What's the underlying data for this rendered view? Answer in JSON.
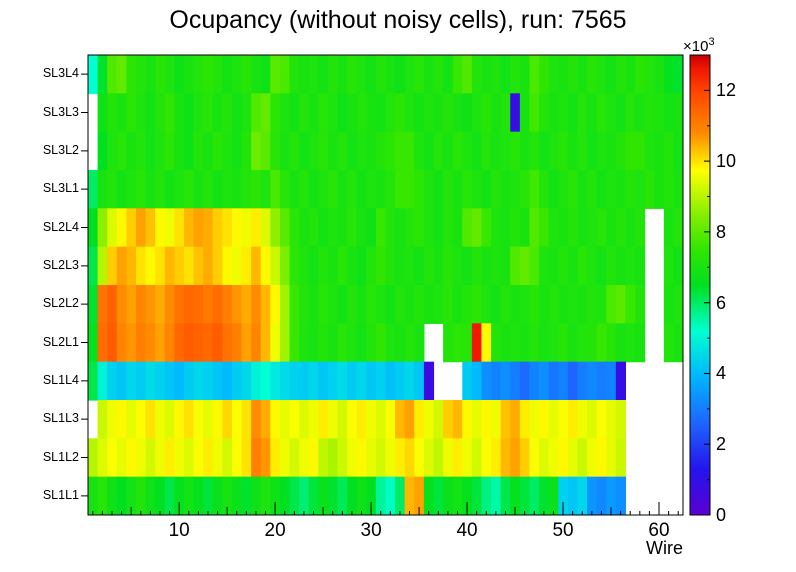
{
  "chart_data": {
    "type": "heatmap",
    "title": "Ocupancy (without noisy cells), run: 7565",
    "xlabel": "Wire",
    "x_ticks": [
      10,
      20,
      30,
      40,
      50,
      60
    ],
    "x_range": [
      0.5,
      62.5
    ],
    "n_wires": 62,
    "zmin": 0,
    "zmax": 13,
    "values_unit": "×10³",
    "z_exponent_base": "×10",
    "z_exponent_power": "3",
    "colorbar_ticks": [
      0,
      2,
      4,
      6,
      8,
      10,
      12
    ],
    "legend_position": "right",
    "grid": false,
    "palette_stops": [
      [
        0.0,
        "#5c00d2"
      ],
      [
        0.1,
        "#2414ec"
      ],
      [
        0.2,
        "#1e64ff"
      ],
      [
        0.3,
        "#00b4ff"
      ],
      [
        0.4,
        "#00ffd2"
      ],
      [
        0.5,
        "#00e020"
      ],
      [
        0.58,
        "#32e600"
      ],
      [
        0.66,
        "#8cf000"
      ],
      [
        0.75,
        "#ffff00"
      ],
      [
        0.83,
        "#ff8c00"
      ],
      [
        0.92,
        "#ff4600"
      ],
      [
        0.97,
        "#f01800"
      ],
      [
        1.0,
        "#c80000"
      ]
    ],
    "series": [
      {
        "name": "SL3L4",
        "values": [
          5.2,
          6.4,
          7.9,
          8.1,
          7.4,
          7.2,
          7.0,
          7.3,
          7.1,
          6.8,
          7.0,
          7.2,
          7.4,
          7.2,
          6.9,
          7.1,
          7.3,
          7.0,
          6.8,
          8.0,
          7.8,
          7.2,
          7.0,
          7.1,
          6.9,
          7.2,
          7.0,
          7.3,
          7.1,
          6.9,
          7.2,
          7.0,
          6.8,
          7.1,
          7.3,
          7.0,
          7.2,
          6.9,
          7.6,
          7.9,
          7.2,
          7.0,
          7.1,
          6.9,
          7.2,
          7.0,
          7.8,
          7.5,
          7.1,
          7.0,
          7.2,
          7.0,
          7.3,
          7.1,
          6.9,
          7.2,
          7.0,
          7.4,
          7.2,
          7.0,
          6.6,
          6.4
        ]
      },
      {
        "name": "SL3L3",
        "values": [
          null,
          6.8,
          7.2,
          7.0,
          7.4,
          7.1,
          6.9,
          7.2,
          7.5,
          7.0,
          6.8,
          7.1,
          7.3,
          7.0,
          7.2,
          6.9,
          7.1,
          7.9,
          8.1,
          7.4,
          7.1,
          6.9,
          7.2,
          7.0,
          7.3,
          7.1,
          6.8,
          7.0,
          7.2,
          7.0,
          6.9,
          7.2,
          7.4,
          7.1,
          6.9,
          7.1,
          7.0,
          7.2,
          7.0,
          6.8,
          7.1,
          7.3,
          7.0,
          7.2,
          0.9,
          7.0,
          7.7,
          7.2,
          7.0,
          7.1,
          6.9,
          7.2,
          7.0,
          7.3,
          7.1,
          6.9,
          7.2,
          7.0,
          7.2,
          7.1,
          6.9,
          7.0
        ]
      },
      {
        "name": "SL3L2",
        "values": [
          null,
          6.5,
          7.1,
          7.3,
          7.0,
          7.2,
          6.9,
          7.1,
          7.4,
          7.0,
          6.8,
          7.2,
          7.0,
          7.3,
          7.1,
          6.9,
          7.2,
          8.2,
          8.0,
          7.3,
          7.0,
          7.2,
          6.9,
          7.1,
          7.3,
          7.0,
          7.2,
          6.9,
          7.1,
          7.0,
          7.2,
          7.4,
          7.6,
          7.6,
          7.1,
          6.9,
          7.2,
          7.0,
          7.3,
          7.1,
          6.9,
          7.2,
          7.0,
          7.1,
          7.3,
          7.0,
          7.2,
          6.9,
          7.1,
          7.3,
          7.0,
          7.2,
          6.9,
          7.1,
          7.0,
          7.2,
          7.5,
          7.5,
          7.1,
          7.0,
          7.2,
          6.9
        ]
      },
      {
        "name": "SL3L1",
        "values": [
          6.0,
          7.0,
          7.2,
          6.9,
          7.1,
          7.3,
          7.0,
          7.2,
          6.9,
          7.1,
          7.3,
          7.0,
          7.2,
          6.9,
          7.1,
          7.0,
          7.2,
          7.4,
          7.1,
          7.8,
          7.3,
          7.0,
          7.2,
          6.9,
          7.1,
          7.3,
          7.0,
          7.2,
          6.9,
          7.1,
          7.0,
          7.2,
          7.6,
          7.6,
          7.4,
          7.1,
          6.9,
          7.2,
          7.0,
          7.3,
          7.1,
          6.9,
          7.2,
          7.0,
          7.1,
          7.3,
          7.7,
          7.2,
          6.9,
          7.1,
          7.3,
          7.0,
          7.2,
          6.9,
          7.1,
          7.0,
          7.2,
          7.1,
          7.3,
          7.0,
          7.2,
          7.0
        ]
      },
      {
        "name": "SL2L4",
        "values": [
          6.5,
          8.6,
          9.4,
          9.8,
          10.2,
          10.6,
          10.3,
          9.8,
          9.6,
          10.0,
          10.4,
          10.6,
          10.5,
          10.2,
          10.0,
          9.8,
          9.6,
          9.9,
          9.4,
          8.6,
          8.0,
          7.4,
          7.0,
          7.2,
          6.9,
          7.1,
          7.0,
          7.3,
          7.0,
          6.8,
          7.6,
          7.2,
          7.0,
          7.2,
          7.4,
          7.1,
          6.9,
          7.2,
          7.0,
          7.9,
          8.1,
          7.6,
          7.1,
          7.0,
          7.2,
          7.0,
          7.9,
          7.6,
          7.1,
          7.0,
          7.2,
          7.0,
          7.1,
          7.3,
          7.0,
          7.2,
          7.0,
          7.2,
          null,
          null,
          7.0,
          7.2
        ]
      },
      {
        "name": "SL2L3",
        "values": [
          6.2,
          9.0,
          10.2,
          10.6,
          10.4,
          10.0,
          9.8,
          10.0,
          10.4,
          10.2,
          10.0,
          10.3,
          10.5,
          10.2,
          9.8,
          9.6,
          9.9,
          10.4,
          9.8,
          9.2,
          8.4,
          7.4,
          7.1,
          6.9,
          7.2,
          7.0,
          7.3,
          7.0,
          6.8,
          7.2,
          7.5,
          7.2,
          7.0,
          7.1,
          6.9,
          7.2,
          7.0,
          7.3,
          7.1,
          6.9,
          7.2,
          7.0,
          7.1,
          7.0,
          7.9,
          8.1,
          7.8,
          7.1,
          7.0,
          7.2,
          7.0,
          7.3,
          7.1,
          6.9,
          7.2,
          7.0,
          7.1,
          7.0,
          null,
          null,
          7.1,
          6.9
        ]
      },
      {
        "name": "SL2L2",
        "values": [
          6.4,
          11.2,
          11.5,
          10.8,
          10.6,
          10.9,
          10.7,
          10.5,
          10.8,
          11.2,
          11.4,
          11.3,
          11.1,
          11.3,
          11.0,
          10.7,
          10.5,
          10.8,
          10.4,
          9.8,
          8.8,
          7.6,
          7.2,
          7.0,
          7.3,
          7.1,
          6.9,
          7.2,
          7.0,
          7.3,
          7.1,
          6.9,
          7.2,
          7.0,
          7.2,
          7.0,
          7.1,
          7.3,
          7.0,
          7.2,
          7.4,
          7.1,
          6.9,
          7.2,
          7.0,
          7.1,
          7.3,
          7.0,
          7.2,
          7.0,
          7.1,
          7.0,
          7.2,
          7.1,
          7.8,
          8.0,
          7.6,
          7.2,
          null,
          null,
          7.0,
          7.1
        ]
      },
      {
        "name": "SL2L1",
        "values": [
          6.6,
          11.3,
          11.6,
          10.9,
          10.7,
          11.0,
          10.8,
          10.6,
          10.9,
          11.4,
          11.6,
          11.5,
          11.4,
          11.6,
          11.2,
          11.0,
          10.6,
          10.9,
          10.4,
          9.6,
          8.8,
          7.6,
          7.1,
          7.0,
          7.2,
          7.0,
          7.3,
          7.1,
          6.9,
          7.2,
          7.5,
          7.1,
          7.0,
          7.2,
          7.0,
          null,
          null,
          7.2,
          7.4,
          7.3,
          12.6,
          9.8,
          7.2,
          7.0,
          7.1,
          7.0,
          7.2,
          7.0,
          7.1,
          7.3,
          7.0,
          7.2,
          7.2,
          7.6,
          7.3,
          7.0,
          7.1,
          7.0,
          null,
          null,
          7.2,
          7.0
        ]
      },
      {
        "name": "SL1L4",
        "values": [
          6.2,
          5.0,
          4.4,
          4.2,
          4.5,
          4.3,
          4.6,
          4.4,
          4.2,
          4.0,
          4.3,
          4.5,
          4.4,
          4.2,
          4.0,
          4.3,
          4.5,
          5.0,
          5.2,
          4.8,
          4.6,
          4.4,
          4.3,
          4.5,
          4.2,
          4.4,
          4.6,
          4.3,
          4.5,
          4.2,
          4.4,
          4.1,
          4.3,
          4.5,
          4.2,
          0.8,
          null,
          null,
          null,
          4.3,
          4.0,
          3.3,
          3.1,
          3.3,
          3.0,
          2.7,
          3.1,
          3.3,
          2.9,
          3.1,
          2.6,
          3.0,
          3.2,
          3.0,
          3.1,
          0.9,
          null,
          null,
          null,
          null,
          null,
          null
        ]
      },
      {
        "name": "SL1L3",
        "values": [
          null,
          9.2,
          9.6,
          9.8,
          9.5,
          9.7,
          10.0,
          9.6,
          9.4,
          9.8,
          10.0,
          9.7,
          9.5,
          9.8,
          10.1,
          9.7,
          10.0,
          10.8,
          10.5,
          9.8,
          9.5,
          9.7,
          9.4,
          9.6,
          9.9,
          9.6,
          9.3,
          9.7,
          9.9,
          9.6,
          9.4,
          9.7,
          10.4,
          10.6,
          9.9,
          9.6,
          9.3,
          10.2,
          10.4,
          9.8,
          9.5,
          9.8,
          9.6,
          10.3,
          10.5,
          9.9,
          9.6,
          9.8,
          9.5,
          9.7,
          9.9,
          9.6,
          9.4,
          9.7,
          9.5,
          9.3,
          null,
          null,
          null,
          null,
          null,
          null
        ]
      },
      {
        "name": "SL1L2",
        "values": [
          9.0,
          9.4,
          9.7,
          9.5,
          9.8,
          9.6,
          9.3,
          9.6,
          9.9,
          9.6,
          9.4,
          9.7,
          9.9,
          9.6,
          9.3,
          9.7,
          10.0,
          11.0,
          10.7,
          9.9,
          9.6,
          9.3,
          9.6,
          9.8,
          9.1,
          8.9,
          9.2,
          9.6,
          9.8,
          9.5,
          9.3,
          9.6,
          9.9,
          10.1,
          9.7,
          9.4,
          9.1,
          9.6,
          9.9,
          9.6,
          9.3,
          9.7,
          9.9,
          10.4,
          10.6,
          10.2,
          9.7,
          9.4,
          9.6,
          9.8,
          9.5,
          9.2,
          9.6,
          9.8,
          9.5,
          9.2,
          null,
          null,
          null,
          null,
          null,
          null
        ]
      },
      {
        "name": "SL1L1",
        "values": [
          7.0,
          7.3,
          6.8,
          6.5,
          6.9,
          7.2,
          6.8,
          6.5,
          6.2,
          6.6,
          6.9,
          6.6,
          6.3,
          6.7,
          7.0,
          6.7,
          6.4,
          6.8,
          7.1,
          6.8,
          6.5,
          6.2,
          5.9,
          6.3,
          6.7,
          6.4,
          6.1,
          6.5,
          6.8,
          6.5,
          5.6,
          5.3,
          6.0,
          10.4,
          10.6,
          6.6,
          6.3,
          6.7,
          6.9,
          6.6,
          6.3,
          5.8,
          5.5,
          6.2,
          6.6,
          6.3,
          6.0,
          6.4,
          6.7,
          4.4,
          4.2,
          4.5,
          3.4,
          3.2,
          3.5,
          3.3,
          null,
          null,
          null,
          null,
          null,
          null
        ]
      }
    ]
  }
}
